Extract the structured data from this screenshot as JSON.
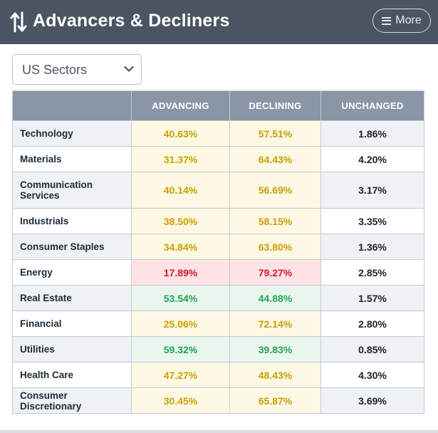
{
  "header": {
    "title": "Advancers & Decliners",
    "title_icon": "sort-arrows-icon",
    "more_label": "More"
  },
  "selector": {
    "value": "US Sectors"
  },
  "table": {
    "columns": [
      "",
      "ADVANCING",
      "DECLINING",
      "UNCHANGED"
    ],
    "rows": [
      {
        "name": "Technology",
        "advancing": "40.63%",
        "declining": "57.51%",
        "unchanged": "1.86%",
        "status": "yellow"
      },
      {
        "name": "Materials",
        "advancing": "31.37%",
        "declining": "64.43%",
        "unchanged": "4.20%",
        "status": "yellow"
      },
      {
        "name": "Communication Services",
        "advancing": "40.14%",
        "declining": "56.69%",
        "unchanged": "3.17%",
        "status": "yellow"
      },
      {
        "name": "Industrials",
        "advancing": "38.50%",
        "declining": "58.15%",
        "unchanged": "3.35%",
        "status": "yellow"
      },
      {
        "name": "Consumer Staples",
        "advancing": "34.84%",
        "declining": "63.80%",
        "unchanged": "1.36%",
        "status": "yellow"
      },
      {
        "name": "Energy",
        "advancing": "17.89%",
        "declining": "79.27%",
        "unchanged": "2.85%",
        "status": "red"
      },
      {
        "name": "Real Estate",
        "advancing": "53.54%",
        "declining": "44.88%",
        "unchanged": "1.57%",
        "status": "green"
      },
      {
        "name": "Financial",
        "advancing": "25.06%",
        "declining": "72.14%",
        "unchanged": "2.80%",
        "status": "yellow"
      },
      {
        "name": "Utilities",
        "advancing": "59.32%",
        "declining": "39.83%",
        "unchanged": "0.85%",
        "status": "green"
      },
      {
        "name": "Health Care",
        "advancing": "47.27%",
        "declining": "48.43%",
        "unchanged": "4.30%",
        "status": "yellow"
      },
      {
        "name": "Consumer Discretionary",
        "advancing": "30.45%",
        "declining": "65.87%",
        "unchanged": "3.69%",
        "status": "yellow"
      }
    ]
  },
  "colors": {
    "header_bg": "#4a5462",
    "table_header_bg": "#8a96a6",
    "yellow_text": "#c9a000",
    "red_text": "#d6182c",
    "green_text": "#24a455"
  }
}
